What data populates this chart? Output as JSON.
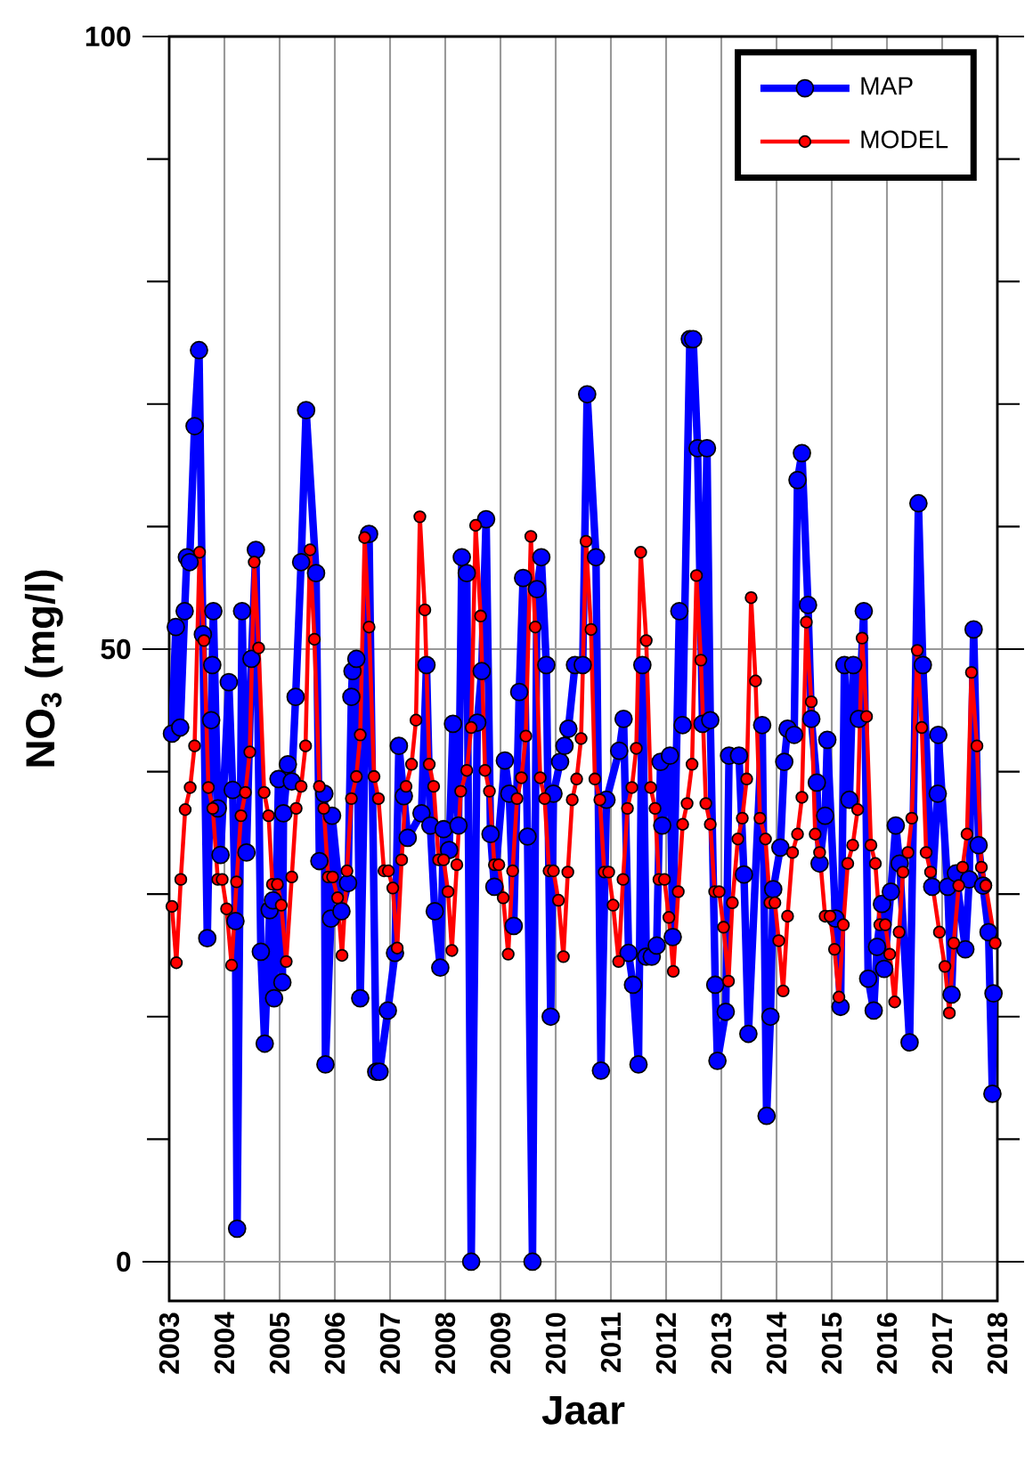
{
  "chart_data": {
    "type": "line",
    "xlabel": "Jaar",
    "ylabel": "NO$_{3}$ (mg/l)",
    "xlim": [
      2003,
      2018
    ],
    "xticks": [
      2003,
      2004,
      2005,
      2006,
      2007,
      2008,
      2009,
      2010,
      2011,
      2012,
      2013,
      2014,
      2015,
      2016,
      2017,
      2018
    ],
    "ylim": [
      -3.2,
      100
    ],
    "yticks": [
      0,
      50,
      100
    ],
    "grid": true,
    "legend": "top right",
    "marker": "circle",
    "series": [
      {
        "name": "MAP",
        "color": "#0000ff",
        "x": [
          2003.05,
          2003.12,
          2003.2,
          2003.28,
          2003.32,
          2003.37,
          2003.46,
          2003.54,
          2003.61,
          2003.69,
          2003.76,
          2003.78,
          2003.8,
          2003.88,
          2003.93,
          2004.08,
          2004.15,
          2004.2,
          2004.23,
          2004.32,
          2004.4,
          2004.49,
          2004.57,
          2004.66,
          2004.73,
          2004.82,
          2004.88,
          2004.9,
          2004.98,
          2005.05,
          2005.07,
          2005.15,
          2005.22,
          2005.29,
          2005.39,
          2005.48,
          2005.66,
          2005.72,
          2005.81,
          2005.83,
          2005.93,
          2005.95,
          2006.12,
          2006.24,
          2006.3,
          2006.32,
          2006.39,
          2006.46,
          2006.62,
          2006.75,
          2006.81,
          2006.96,
          2007.09,
          2007.16,
          2007.25,
          2007.32,
          2007.57,
          2007.66,
          2007.73,
          2007.81,
          2007.91,
          2007.97,
          2008.07,
          2008.14,
          2008.24,
          2008.3,
          2008.39,
          2008.47,
          2008.58,
          2008.66,
          2008.74,
          2008.82,
          2008.89,
          2009.08,
          2009.16,
          2009.24,
          2009.34,
          2009.41,
          2009.49,
          2009.58,
          2009.66,
          2009.74,
          2009.83,
          2009.91,
          2009.96,
          2010.08,
          2010.16,
          2010.23,
          2010.35,
          2010.49,
          2010.57,
          2010.73,
          2010.82,
          2010.92,
          2011.15,
          2011.23,
          2011.32,
          2011.4,
          2011.5,
          2011.57,
          2011.64,
          2011.74,
          2011.83,
          2011.9,
          2011.93,
          2012.07,
          2012.12,
          2012.24,
          2012.3,
          2012.43,
          2012.49,
          2012.57,
          2012.66,
          2012.74,
          2012.8,
          2012.89,
          2012.93,
          2013.08,
          2013.14,
          2013.32,
          2013.41,
          2013.49,
          2013.74,
          2013.82,
          2013.89,
          2013.94,
          2014.07,
          2014.14,
          2014.2,
          2014.32,
          2014.38,
          2014.46,
          2014.57,
          2014.63,
          2014.73,
          2014.78,
          2014.88,
          2014.92,
          2015.07,
          2015.16,
          2015.23,
          2015.32,
          2015.39,
          2015.49,
          2015.58,
          2015.66,
          2015.76,
          2015.82,
          2015.91,
          2015.95,
          2016.07,
          2016.16,
          2016.23,
          2016.41,
          2016.57,
          2016.65,
          2016.82,
          2016.92,
          2016.93,
          2017.1,
          2017.17,
          2017.25,
          2017.42,
          2017.49,
          2017.57,
          2017.66,
          2017.74,
          2017.84,
          2017.91,
          2017.93
        ],
        "values": [
          43.1,
          51.8,
          43.6,
          53.1,
          57.5,
          57.1,
          68.2,
          74.4,
          51.2,
          26.4,
          44.2,
          48.7,
          53.1,
          37.0,
          33.2,
          47.3,
          38.5,
          27.8,
          2.7,
          53.1,
          33.4,
          49.2,
          58.1,
          25.3,
          17.8,
          28.7,
          29.5,
          21.5,
          39.4,
          22.8,
          36.6,
          40.6,
          39.2,
          46.1,
          57.1,
          69.5,
          56.2,
          32.7,
          38.2,
          16.1,
          28.0,
          36.4,
          28.6,
          30.9,
          46.1,
          48.2,
          49.2,
          21.5,
          59.4,
          15.5,
          15.5,
          20.5,
          25.2,
          42.1,
          38.0,
          34.6,
          36.6,
          48.7,
          35.6,
          28.6,
          24.0,
          35.3,
          33.6,
          43.9,
          35.6,
          57.5,
          56.2,
          0,
          44.0,
          48.2,
          60.6,
          34.9,
          30.6,
          40.9,
          38.2,
          27.4,
          46.5,
          55.8,
          34.7,
          0,
          54.9,
          57.5,
          48.7,
          20.0,
          38.2,
          40.8,
          42.1,
          43.5,
          48.7,
          48.7,
          70.8,
          57.5,
          15.6,
          37.7,
          41.7,
          44.3,
          25.2,
          22.6,
          16.1,
          48.7,
          24.9,
          24.9,
          25.8,
          40.8,
          35.6,
          41.3,
          26.5,
          53.1,
          43.8,
          75.3,
          75.3,
          66.4,
          43.9,
          66.4,
          44.2,
          22.6,
          16.4,
          20.4,
          41.3,
          41.3,
          31.6,
          18.6,
          43.8,
          11.9,
          20.0,
          30.4,
          33.8,
          40.8,
          43.5,
          43.0,
          63.8,
          66.0,
          53.6,
          44.3,
          39.1,
          32.5,
          36.4,
          42.6,
          28.0,
          20.8,
          48.7,
          37.7,
          48.7,
          44.3,
          53.1,
          23.1,
          20.5,
          25.7,
          29.2,
          23.9,
          30.2,
          35.6,
          32.5,
          17.9,
          61.9,
          48.7,
          30.6,
          38.2,
          43.0,
          30.6,
          21.8,
          31.7,
          25.5,
          31.2,
          51.6,
          34.0,
          30.7,
          26.9,
          13.7,
          21.9
        ]
      },
      {
        "name": "MODEL",
        "color": "#ff0000",
        "x": [
          2003.05,
          2003.13,
          2003.21,
          2003.29,
          2003.38,
          2003.46,
          2003.55,
          2003.63,
          2003.71,
          2003.79,
          2003.88,
          2003.96,
          2004.04,
          2004.13,
          2004.22,
          2004.3,
          2004.38,
          2004.46,
          2004.54,
          2004.62,
          2004.72,
          2004.8,
          2004.87,
          2004.96,
          2005.03,
          2005.12,
          2005.22,
          2005.3,
          2005.39,
          2005.47,
          2005.55,
          2005.63,
          2005.72,
          2005.8,
          2005.88,
          2005.96,
          2006.05,
          2006.13,
          2006.22,
          2006.3,
          2006.39,
          2006.46,
          2006.54,
          2006.62,
          2006.71,
          2006.79,
          2006.89,
          2006.97,
          2007.05,
          2007.13,
          2007.21,
          2007.29,
          2007.39,
          2007.47,
          2007.54,
          2007.63,
          2007.71,
          2007.79,
          2007.88,
          2007.97,
          2008.05,
          2008.12,
          2008.21,
          2008.28,
          2008.39,
          2008.47,
          2008.55,
          2008.64,
          2008.72,
          2008.8,
          2008.89,
          2008.97,
          2009.05,
          2009.14,
          2009.22,
          2009.3,
          2009.38,
          2009.46,
          2009.55,
          2009.63,
          2009.72,
          2009.8,
          2009.88,
          2009.96,
          2010.05,
          2010.14,
          2010.22,
          2010.3,
          2010.38,
          2010.46,
          2010.55,
          2010.64,
          2010.71,
          2010.8,
          2010.88,
          2010.96,
          2011.04,
          2011.14,
          2011.22,
          2011.3,
          2011.38,
          2011.46,
          2011.54,
          2011.64,
          2011.72,
          2011.8,
          2011.87,
          2011.97,
          2012.05,
          2012.13,
          2012.22,
          2012.3,
          2012.38,
          2012.47,
          2012.55,
          2012.63,
          2012.72,
          2012.8,
          2012.88,
          2012.96,
          2013.04,
          2013.13,
          2013.2,
          2013.3,
          2013.38,
          2013.46,
          2013.54,
          2013.62,
          2013.7,
          2013.8,
          2013.88,
          2013.97,
          2014.04,
          2014.12,
          2014.2,
          2014.29,
          2014.38,
          2014.46,
          2014.54,
          2014.63,
          2014.7,
          2014.78,
          2014.88,
          2014.97,
          2015.05,
          2015.13,
          2015.21,
          2015.29,
          2015.38,
          2015.47,
          2015.55,
          2015.63,
          2015.71,
          2015.79,
          2015.87,
          2015.97,
          2016.05,
          2016.14,
          2016.22,
          2016.29,
          2016.38,
          2016.45,
          2016.55,
          2016.63,
          2016.71,
          2016.79,
          2016.95,
          2017.05,
          2017.13,
          2017.21,
          2017.3,
          2017.37,
          2017.45,
          2017.53,
          2017.63,
          2017.71,
          2017.79,
          2017.96
        ],
        "values": [
          29.0,
          24.4,
          31.2,
          36.9,
          38.7,
          42.1,
          57.9,
          50.7,
          38.7,
          37.0,
          31.2,
          31.2,
          28.8,
          24.2,
          31.0,
          36.4,
          38.3,
          41.6,
          57.1,
          50.1,
          38.3,
          36.4,
          30.8,
          30.8,
          29.1,
          24.5,
          31.4,
          37.0,
          38.8,
          42.1,
          58.1,
          50.8,
          38.8,
          37.0,
          31.4,
          31.4,
          29.7,
          25.0,
          31.9,
          37.8,
          39.6,
          43.0,
          59.1,
          51.8,
          39.6,
          37.8,
          31.9,
          31.9,
          30.5,
          25.6,
          32.8,
          38.8,
          40.6,
          44.2,
          60.8,
          53.2,
          40.6,
          38.8,
          32.8,
          32.8,
          30.2,
          25.4,
          32.4,
          38.4,
          40.1,
          43.6,
          60.1,
          52.7,
          40.1,
          38.4,
          32.4,
          32.4,
          29.7,
          25.1,
          31.9,
          37.8,
          39.5,
          42.9,
          59.2,
          51.8,
          39.5,
          37.8,
          31.9,
          31.9,
          29.5,
          24.9,
          31.8,
          37.7,
          39.4,
          42.7,
          58.8,
          51.6,
          39.4,
          37.7,
          31.8,
          31.8,
          29.1,
          24.5,
          31.2,
          37.0,
          38.7,
          41.9,
          57.9,
          50.7,
          38.7,
          37.0,
          31.2,
          31.2,
          28.1,
          23.7,
          30.2,
          35.7,
          37.4,
          40.6,
          56.0,
          49.1,
          37.4,
          35.7,
          30.2,
          30.2,
          27.3,
          22.9,
          29.3,
          34.5,
          36.2,
          39.4,
          54.2,
          47.4,
          36.2,
          34.5,
          29.3,
          29.3,
          26.2,
          22.1,
          28.2,
          33.4,
          34.9,
          37.9,
          52.2,
          45.7,
          34.9,
          33.4,
          28.2,
          28.2,
          25.5,
          21.6,
          27.5,
          32.5,
          34.0,
          36.9,
          50.9,
          44.5,
          34.0,
          32.5,
          27.5,
          27.5,
          25.1,
          21.2,
          26.9,
          31.8,
          33.4,
          36.2,
          49.9,
          43.6,
          33.4,
          31.8,
          26.9,
          24.1,
          20.3,
          26.0,
          30.7,
          32.2,
          34.9,
          48.1,
          42.1,
          32.2,
          30.7,
          26.0
        ]
      }
    ]
  }
}
